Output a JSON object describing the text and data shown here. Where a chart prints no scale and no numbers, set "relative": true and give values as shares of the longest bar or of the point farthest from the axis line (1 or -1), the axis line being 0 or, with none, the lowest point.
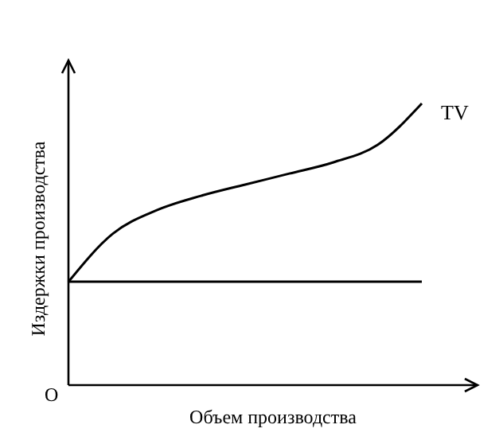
{
  "chart_data": {
    "type": "line",
    "relative": true,
    "xlabel": "Объем производства",
    "ylabel": "Издержки производства",
    "annotations": [
      "O"
    ],
    "categories": [
      null,
      null,
      null,
      null,
      null,
      null,
      null,
      null,
      null
    ],
    "series": [
      {
        "name": "TV",
        "color": "#000000",
        "values": [
          0.367,
          0.537,
          0.621,
          0.672,
          0.712,
          0.751,
          0.791,
          0.853,
          1
        ]
      },
      {
        "color": "#000000",
        "values": [
          0.367,
          0.367,
          0.367,
          0.367,
          0.367,
          0.367,
          0.367,
          0.367,
          0.367
        ]
      }
    ],
    "marker": "none",
    "line_style": "solid"
  }
}
